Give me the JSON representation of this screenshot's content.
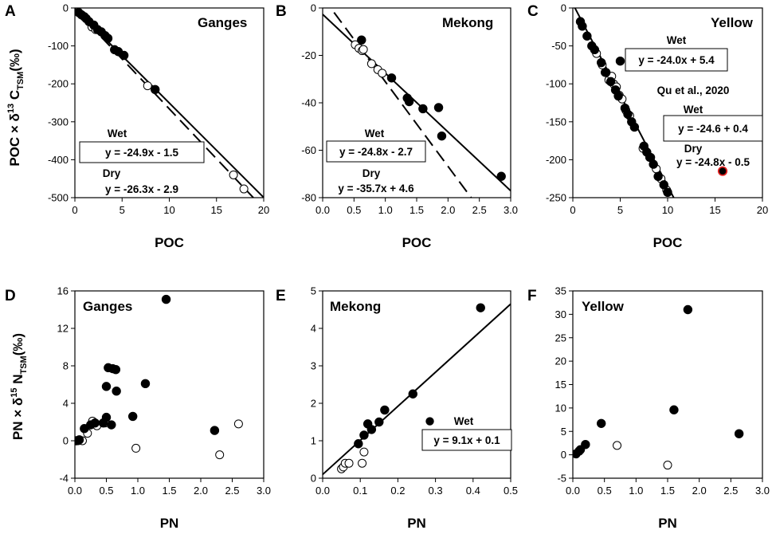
{
  "chart_data": [
    {
      "panel": "A",
      "river": "Ganges",
      "type": "scatter",
      "xlabel": "POC",
      "ylabel": "POC × δ13 CTSM(‰)",
      "xlim": [
        0,
        20
      ],
      "ylim": [
        -500,
        0
      ],
      "xticks": [
        "0",
        "5",
        "10",
        "15",
        "20"
      ],
      "yticks": [
        "0",
        "-100",
        "-200",
        "-300",
        "-400",
        "-500"
      ],
      "wet": [
        [
          0.4,
          -12
        ],
        [
          0.7,
          -18
        ],
        [
          1,
          -23
        ],
        [
          1.2,
          -28
        ],
        [
          1.5,
          -36
        ],
        [
          2,
          -45
        ],
        [
          2.4,
          -57
        ],
        [
          2.8,
          -63
        ],
        [
          3.2,
          -73
        ],
        [
          3.5,
          -80
        ],
        [
          4.2,
          -110
        ],
        [
          4.6,
          -115
        ],
        [
          5.2,
          -125
        ],
        [
          8.5,
          -215
        ]
      ],
      "dry": [
        [
          1.8,
          -50
        ],
        [
          2.2,
          -57
        ],
        [
          7.7,
          -205
        ],
        [
          16.8,
          -440
        ],
        [
          17.9,
          -477
        ]
      ],
      "fits": [
        {
          "label": "Wet",
          "equation": "y = -24.9x - 1.5",
          "slope": -24.9,
          "intercept": -1.5,
          "style": "solid",
          "boxed": true
        },
        {
          "label": "Dry",
          "equation": "y = -26.3x - 2.9",
          "slope": -26.3,
          "intercept": -2.9,
          "style": "dashed",
          "boxed": false
        }
      ]
    },
    {
      "panel": "B",
      "river": "Mekong",
      "type": "scatter",
      "xlabel": "POC",
      "ylabel": "",
      "xlim": [
        0,
        3
      ],
      "ylim": [
        -80,
        0
      ],
      "xticks": [
        "0.0",
        "0.5",
        "1.0",
        "1.5",
        "2.0",
        "2.5",
        "3.0"
      ],
      "yticks": [
        "0",
        "-20",
        "-40",
        "-60",
        "-80"
      ],
      "wet": [
        [
          0.62,
          -13.5
        ],
        [
          1.1,
          -29.5
        ],
        [
          1.35,
          -38
        ],
        [
          1.38,
          -39.5
        ],
        [
          1.6,
          -42.5
        ],
        [
          1.85,
          -42
        ],
        [
          1.9,
          -54
        ],
        [
          2.85,
          -71
        ]
      ],
      "dry": [
        [
          0.52,
          -15.5
        ],
        [
          0.58,
          -17
        ],
        [
          0.63,
          -18
        ],
        [
          0.65,
          -17.5
        ],
        [
          0.78,
          -23.5
        ],
        [
          0.88,
          -26
        ],
        [
          0.95,
          -27.5
        ]
      ],
      "fits": [
        {
          "label": "Wet",
          "equation": "y = -24.8x - 2.7",
          "slope": -24.8,
          "intercept": -2.7,
          "style": "solid",
          "boxed": true
        },
        {
          "label": "Dry",
          "equation": "y = -35.7x + 4.6",
          "slope": -35.7,
          "intercept": 4.6,
          "style": "dashed",
          "boxed": false
        }
      ]
    },
    {
      "panel": "C",
      "river": "Yellow",
      "type": "scatter",
      "xlabel": "POC",
      "ylabel": "",
      "xlim": [
        0,
        20
      ],
      "ylim": [
        -250,
        0
      ],
      "xticks": [
        "0",
        "5",
        "10",
        "15",
        "20"
      ],
      "yticks": [
        "0",
        "-50",
        "-100",
        "-150",
        "-200",
        "-250"
      ],
      "wet": [
        [
          0.8,
          -18
        ],
        [
          1,
          -24
        ],
        [
          1.5,
          -37
        ],
        [
          2,
          -50
        ],
        [
          2.3,
          -55
        ],
        [
          3,
          -72
        ],
        [
          3.5,
          -85
        ],
        [
          4,
          -97
        ],
        [
          4.5,
          -108
        ],
        [
          4.8,
          -116
        ],
        [
          5.5,
          -132
        ],
        [
          5.8,
          -140
        ],
        [
          6.2,
          -150
        ],
        [
          6.5,
          -157
        ],
        [
          7.5,
          -182
        ],
        [
          7.8,
          -190
        ],
        [
          8.2,
          -197
        ],
        [
          8.5,
          -206
        ],
        [
          9,
          -222
        ],
        [
          9.6,
          -233
        ],
        [
          10,
          -243
        ],
        [
          5,
          -70
        ]
      ],
      "dry": [
        [
          2.5,
          -60
        ],
        [
          3.1,
          -75
        ],
        [
          3.4,
          -85
        ],
        [
          3.8,
          -95
        ],
        [
          4.1,
          -90
        ],
        [
          4.3,
          -100
        ],
        [
          4.6,
          -104
        ],
        [
          4.9,
          -115
        ],
        [
          5.2,
          -120
        ],
        [
          5.6,
          -135
        ],
        [
          6,
          -142
        ],
        [
          7.4,
          -185
        ],
        [
          8.1,
          -197
        ],
        [
          8.8,
          -212
        ],
        [
          9.3,
          -225
        ],
        [
          9.9,
          -240
        ]
      ],
      "highlight": [
        [
          15.8,
          -215
        ]
      ],
      "highlight_color": "#e02020",
      "fits": [
        {
          "label": "Wet",
          "equation": "y = -24.0x + 5.4",
          "slope": -24.0,
          "intercept": 5.4,
          "style": "solid",
          "boxed": true
        }
      ],
      "reference": {
        "title": "Qu et al., 2020",
        "wet_label": "Wet",
        "wet_equation": "y = -24.6 + 0.4",
        "dry_label": "Dry",
        "dry_equation": "y = -24.8x - 0.5"
      }
    },
    {
      "panel": "D",
      "river": "Ganges",
      "type": "scatter",
      "xlabel": "PN",
      "ylabel": "PN × δ15 NTSM(‰)",
      "xlim": [
        0,
        3
      ],
      "ylim": [
        -4,
        16
      ],
      "xticks": [
        "0.0",
        "0.5",
        "1.0",
        "1.5",
        "2.0",
        "2.5",
        "3.0"
      ],
      "yticks": [
        "-4",
        "0",
        "4",
        "8",
        "12",
        "16"
      ],
      "wet": [
        [
          0.02,
          0
        ],
        [
          0.07,
          0.1
        ],
        [
          0.15,
          1.3
        ],
        [
          0.25,
          1.7
        ],
        [
          0.32,
          1.9
        ],
        [
          0.45,
          1.9
        ],
        [
          0.5,
          2.5
        ],
        [
          0.5,
          5.8
        ],
        [
          0.53,
          7.8
        ],
        [
          0.58,
          1.7
        ],
        [
          0.6,
          7.7
        ],
        [
          0.65,
          7.6
        ],
        [
          0.66,
          5.3
        ],
        [
          0.92,
          2.6
        ],
        [
          1.12,
          6.1
        ],
        [
          1.45,
          15.1
        ],
        [
          2.22,
          1.1
        ]
      ],
      "dry": [
        [
          0.05,
          0
        ],
        [
          0.12,
          0
        ],
        [
          0.2,
          0.8
        ],
        [
          0.28,
          2.1
        ],
        [
          0.35,
          1.6
        ],
        [
          0.48,
          1.9
        ],
        [
          0.97,
          -0.8
        ],
        [
          2.3,
          -1.5
        ],
        [
          2.6,
          1.8
        ]
      ]
    },
    {
      "panel": "E",
      "river": "Mekong",
      "type": "scatter",
      "xlabel": "PN",
      "ylabel": "",
      "xlim": [
        0,
        0.5
      ],
      "ylim": [
        0,
        5
      ],
      "xticks": [
        "0.0",
        "0.1",
        "0.2",
        "0.3",
        "0.4",
        "0.5"
      ],
      "yticks": [
        "0",
        "1",
        "2",
        "3",
        "4",
        "5"
      ],
      "wet": [
        [
          0.095,
          0.92
        ],
        [
          0.11,
          1.15
        ],
        [
          0.12,
          1.45
        ],
        [
          0.13,
          1.3
        ],
        [
          0.15,
          1.5
        ],
        [
          0.165,
          1.82
        ],
        [
          0.24,
          2.25
        ],
        [
          0.42,
          4.55
        ]
      ],
      "dry": [
        [
          0.05,
          0.25
        ],
        [
          0.055,
          0.3
        ],
        [
          0.06,
          0.4
        ],
        [
          0.07,
          0.4
        ],
        [
          0.105,
          0.4
        ],
        [
          0.11,
          0.7
        ]
      ],
      "legend_marker": [
        0.285,
        1.52
      ],
      "fits": [
        {
          "label": "Wet",
          "equation": "y = 9.1x + 0.1",
          "slope": 9.1,
          "intercept": 0.1,
          "style": "solid",
          "boxed": true
        }
      ]
    },
    {
      "panel": "F",
      "river": "Yellow",
      "type": "scatter",
      "xlabel": "PN",
      "ylabel": "",
      "xlim": [
        0,
        3
      ],
      "ylim": [
        -5,
        35
      ],
      "xticks": [
        "0.0",
        "0.5",
        "1.0",
        "1.5",
        "2.0",
        "2.5",
        "3.0"
      ],
      "yticks": [
        "-5",
        "0",
        "5",
        "10",
        "15",
        "20",
        "25",
        "30",
        "35"
      ],
      "wet": [
        [
          0.05,
          0.2
        ],
        [
          0.1,
          0.8
        ],
        [
          0.12,
          1.1
        ],
        [
          0.2,
          2.2
        ],
        [
          0.45,
          6.7
        ],
        [
          1.6,
          9.6
        ],
        [
          1.82,
          31
        ],
        [
          2.63,
          4.5
        ]
      ],
      "dry": [
        [
          0.7,
          2
        ],
        [
          1.5,
          -2.2
        ]
      ]
    }
  ]
}
